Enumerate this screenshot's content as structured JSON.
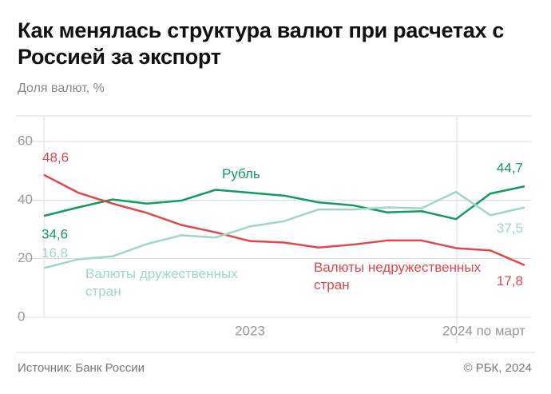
{
  "title": "Как менялась структура валют при расчетах с Россией за экспорт",
  "source": "Источник: Банк России",
  "copyright": "© РБК, 2024",
  "chart_data": {
    "type": "line",
    "subtitle": "Доля валют, %",
    "categories": [
      null,
      null,
      null,
      null,
      null,
      null,
      "2023",
      null,
      null,
      null,
      null,
      null,
      null,
      "2024 по март",
      null
    ],
    "ylim": [
      0,
      60
    ],
    "yticks": [
      0,
      20,
      40,
      60
    ],
    "grid": true,
    "series": [
      {
        "name": "Рубль",
        "color": "#129a62",
        "values": [
          34.6,
          37.5,
          40.2,
          38.8,
          39.8,
          43.5,
          42.5,
          41.5,
          39.2,
          38.2,
          35.8,
          36.2,
          33.5,
          42.2,
          44.7
        ],
        "value_labels": [
          "34,6",
          null,
          null,
          null,
          null,
          null,
          null,
          null,
          null,
          null,
          null,
          null,
          null,
          null,
          "44,7"
        ]
      },
      {
        "name": "Валюты недружественных стран",
        "color": "#e0474c",
        "values": [
          48.6,
          42.5,
          38.8,
          35.6,
          31.5,
          29,
          26,
          25.5,
          23.8,
          24.8,
          26.2,
          26.2,
          23.6,
          22.8,
          17.8
        ],
        "value_labels": [
          "48,6",
          null,
          null,
          null,
          null,
          null,
          null,
          null,
          null,
          null,
          null,
          null,
          null,
          null,
          "17,8"
        ]
      },
      {
        "name": "Валюты дружественных стран",
        "color": "#9fd8bf",
        "values": [
          16.8,
          19.8,
          20.8,
          25,
          28,
          27.2,
          31,
          32.8,
          36.8,
          36.8,
          37.5,
          37.2,
          42.8,
          34.8,
          37.5
        ],
        "value_labels": [
          "16,8",
          null,
          null,
          null,
          null,
          null,
          null,
          null,
          null,
          null,
          null,
          null,
          null,
          null,
          "37,5"
        ]
      }
    ]
  }
}
